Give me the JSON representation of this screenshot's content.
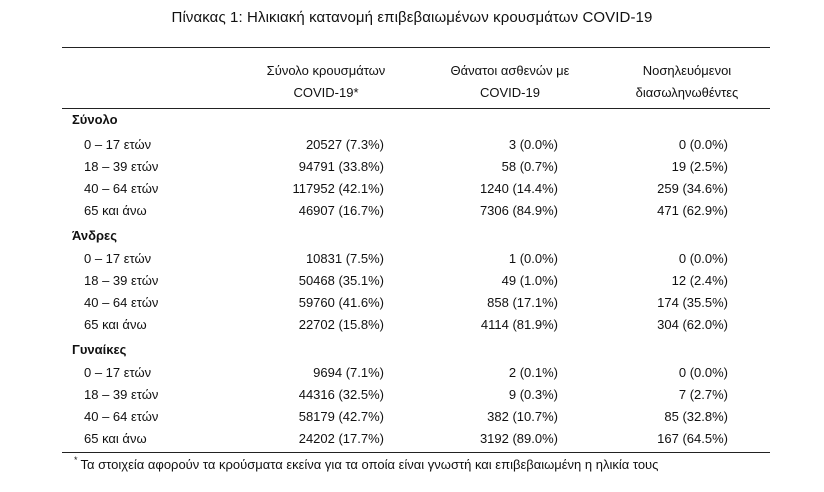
{
  "title": "Πίνακας 1: Ηλικιακή κατανομή επιβεβαιωμένων κρουσμάτων COVID-19",
  "columns": [
    {
      "line1": "Σύνολο κρουσμάτων",
      "line2": "COVID-19*"
    },
    {
      "line1": "Θάνατοι ασθενών με",
      "line2": "COVID-19"
    },
    {
      "line1": "Νοσηλευόμενοι",
      "line2": "διασωληνωθέντες"
    }
  ],
  "sections": [
    {
      "title": "Σύνολο",
      "rows": [
        {
          "label": "0 – 17 ετών",
          "cases": "20527 (7.3%)",
          "deaths": "3 (0.0%)",
          "intubated": "0 (0.0%)"
        },
        {
          "label": "18 – 39 ετών",
          "cases": "94791 (33.8%)",
          "deaths": "58 (0.7%)",
          "intubated": "19 (2.5%)"
        },
        {
          "label": "40 – 64 ετών",
          "cases": "117952 (42.1%)",
          "deaths": "1240 (14.4%)",
          "intubated": "259 (34.6%)"
        },
        {
          "label": "65 και άνω",
          "cases": "46907 (16.7%)",
          "deaths": "7306 (84.9%)",
          "intubated": "471 (62.9%)"
        }
      ]
    },
    {
      "title": "Άνδρες",
      "rows": [
        {
          "label": "0 – 17 ετών",
          "cases": "10831 (7.5%)",
          "deaths": "1 (0.0%)",
          "intubated": "0 (0.0%)"
        },
        {
          "label": "18 – 39 ετών",
          "cases": "50468 (35.1%)",
          "deaths": "49 (1.0%)",
          "intubated": "12 (2.4%)"
        },
        {
          "label": "40 – 64 ετών",
          "cases": "59760 (41.6%)",
          "deaths": "858 (17.1%)",
          "intubated": "174 (35.5%)"
        },
        {
          "label": "65 και άνω",
          "cases": "22702 (15.8%)",
          "deaths": "4114 (81.9%)",
          "intubated": "304 (62.0%)"
        }
      ]
    },
    {
      "title": "Γυναίκες",
      "rows": [
        {
          "label": "0 – 17 ετών",
          "cases": "9694 (7.1%)",
          "deaths": "2 (0.1%)",
          "intubated": "0 (0.0%)"
        },
        {
          "label": "18 – 39 ετών",
          "cases": "44316 (32.5%)",
          "deaths": "9 (0.3%)",
          "intubated": "7 (2.7%)"
        },
        {
          "label": "40 – 64 ετών",
          "cases": "58179 (42.7%)",
          "deaths": "382 (10.7%)",
          "intubated": "85 (32.8%)"
        },
        {
          "label": "65 και άνω",
          "cases": "24202 (17.7%)",
          "deaths": "3192 (89.0%)",
          "intubated": "167 (64.5%)"
        }
      ]
    }
  ],
  "footnote": {
    "marker": "*",
    "text": "Τα στοιχεία αφορούν τα κρούσματα εκείνα για τα οποία είναι γνωστή και επιβεβαιωμένη η ηλικία τους"
  }
}
